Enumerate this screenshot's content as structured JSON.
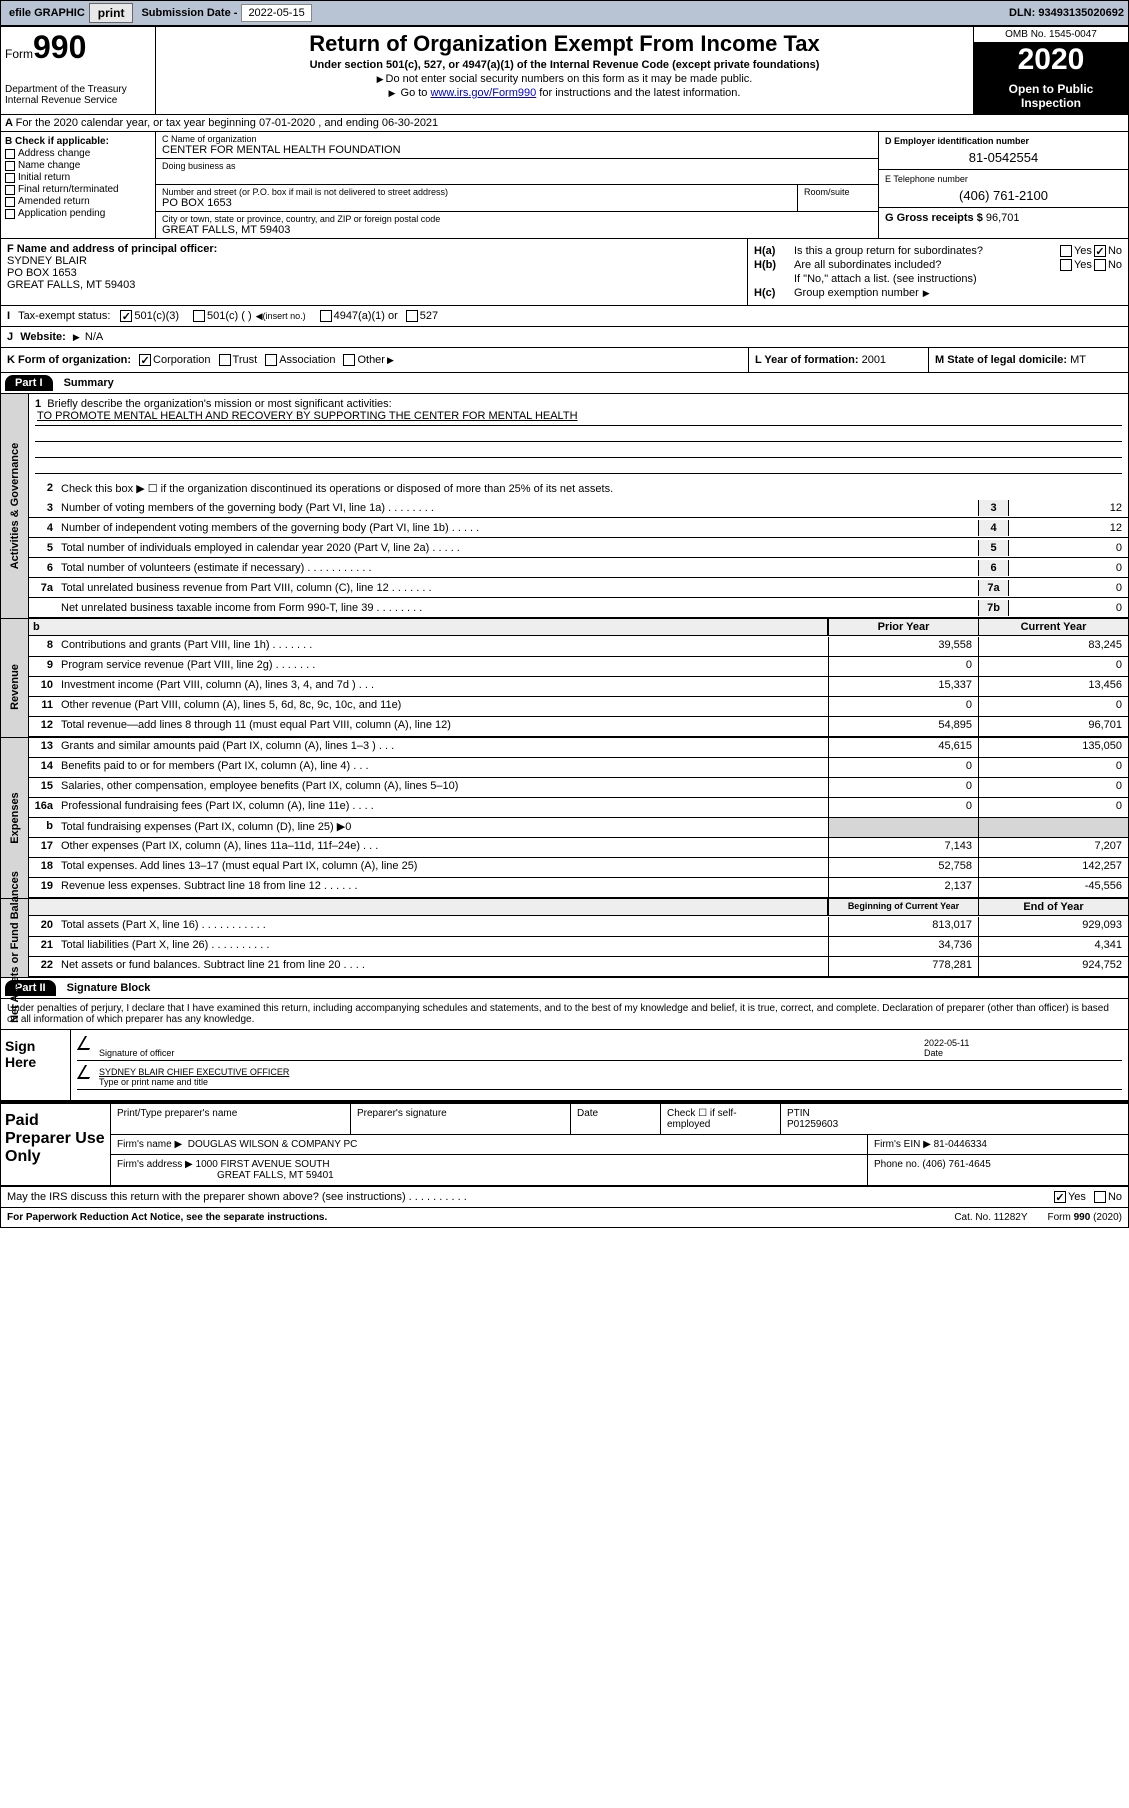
{
  "topbar": {
    "efile_label": "efile GRAPHIC",
    "print_btn": "print",
    "sub_date_label": "Submission Date -",
    "sub_date": "2022-05-15",
    "dln_label": "DLN:",
    "dln": "93493135020692"
  },
  "header": {
    "form_prefix": "Form",
    "form_no": "990",
    "dept": "Department of the Treasury",
    "irs": "Internal Revenue Service",
    "title": "Return of Organization Exempt From Income Tax",
    "subtitle": "Under section 501(c), 527, or 4947(a)(1) of the Internal Revenue Code (except private foundations)",
    "sub2a": "Do not enter social security numbers on this form as it may be made public.",
    "sub2b_pre": "Go to ",
    "sub2b_link": "www.irs.gov/Form990",
    "sub2b_post": " for instructions and the latest information.",
    "omb": "OMB No. 1545-0047",
    "year": "2020",
    "inspect": "Open to Public Inspection"
  },
  "row_a": "For the 2020 calendar year, or tax year beginning 07-01-2020    , and ending 06-30-2021",
  "col_b": {
    "label": "Check if applicable:",
    "items": [
      "Address change",
      "Name change",
      "Initial return",
      "Final return/terminated",
      "Amended return",
      "Application pending"
    ]
  },
  "org": {
    "name_label": "C Name of organization",
    "name": "CENTER FOR MENTAL HEALTH FOUNDATION",
    "dba_label": "Doing business as",
    "addr_label": "Number and street (or P.O. box if mail is not delivered to street address)",
    "room_label": "Room/suite",
    "addr": "PO BOX 1653",
    "city_label": "City or town, state or province, country, and ZIP or foreign postal code",
    "city": "GREAT FALLS, MT  59403"
  },
  "col_d": {
    "ein_label": "D Employer identification number",
    "ein": "81-0542554",
    "phone_label": "E Telephone number",
    "phone": "(406) 761-2100",
    "gross_label": "G Gross receipts $",
    "gross": "96,701"
  },
  "officer": {
    "label": "F  Name and address of principal officer:",
    "name": "SYDNEY BLAIR",
    "addr1": "PO BOX 1653",
    "addr2": "GREAT FALLS, MT  59403"
  },
  "h": {
    "a_label": "H(a)",
    "a_text": "Is this a group return for subordinates?",
    "b_label": "H(b)",
    "b_text": "Are all subordinates included?",
    "attach": "If \"No,\" attach a list. (see instructions)",
    "c_label": "H(c)",
    "c_text": "Group exemption number"
  },
  "row_i": {
    "label": "Tax-exempt status:",
    "o1": "501(c)(3)",
    "o2": "501(c) (  )",
    "o2b": "(insert no.)",
    "o3": "4947(a)(1) or",
    "o4": "527"
  },
  "row_j": {
    "label": "Website:",
    "val": "N/A"
  },
  "row_k": {
    "label": "K Form of organization:",
    "o1": "Corporation",
    "o2": "Trust",
    "o3": "Association",
    "o4": "Other",
    "l_label": "L Year of formation:",
    "l_val": "2001",
    "m_label": "M State of legal domicile:",
    "m_val": "MT"
  },
  "part1": {
    "hdr": "Part I",
    "title": "Summary",
    "side1": "Activities & Governance",
    "side2": "Revenue",
    "side3": "Expenses",
    "side4": "Net Assets or Fund Balances",
    "q1": "Briefly describe the organization's mission or most significant activities:",
    "mission": "TO PROMOTE MENTAL HEALTH AND RECOVERY BY SUPPORTING THE CENTER FOR MENTAL HEALTH",
    "q2": "Check this box ▶ ☐  if the organization discontinued its operations or disposed of more than 25% of its net assets.",
    "lines_gov": [
      {
        "n": "3",
        "t": "Number of voting members of the governing body (Part VI, line 1a)  .    .    .    .    .    .    .    .",
        "bn": "3",
        "v": "12"
      },
      {
        "n": "4",
        "t": "Number of independent voting members of the governing body (Part VI, line 1b)  .    .    .    .    .",
        "bn": "4",
        "v": "12"
      },
      {
        "n": "5",
        "t": "Total number of individuals employed in calendar year 2020 (Part V, line 2a)  .    .    .    .    .",
        "bn": "5",
        "v": "0"
      },
      {
        "n": "6",
        "t": "Total number of volunteers (estimate if necessary)  .    .    .    .    .    .    .    .    .    .    .",
        "bn": "6",
        "v": "0"
      },
      {
        "n": "7a",
        "t": "Total unrelated business revenue from Part VIII, column (C), line 12  .    .    .    .    .    .    .",
        "bn": "7a",
        "v": "0"
      },
      {
        "n": "",
        "t": "Net unrelated business taxable income from Form 990-T, line 39   .    .    .    .    .    .    .    .",
        "bn": "7b",
        "v": "0"
      }
    ],
    "hdr_prior": "Prior Year",
    "hdr_curr": "Current Year",
    "lines_rev": [
      {
        "n": "8",
        "t": "Contributions and grants (Part VIII, line 1h)  .    .    .    .    .    .    .",
        "p": "39,558",
        "c": "83,245"
      },
      {
        "n": "9",
        "t": "Program service revenue (Part VIII, line 2g)  .    .    .    .    .    .    .",
        "p": "0",
        "c": "0"
      },
      {
        "n": "10",
        "t": "Investment income (Part VIII, column (A), lines 3, 4, and 7d )  .    .    .",
        "p": "15,337",
        "c": "13,456"
      },
      {
        "n": "11",
        "t": "Other revenue (Part VIII, column (A), lines 5, 6d, 8c, 9c, 10c, and 11e)",
        "p": "0",
        "c": "0"
      },
      {
        "n": "12",
        "t": "Total revenue—add lines 8 through 11 (must equal Part VIII, column (A), line 12)",
        "p": "54,895",
        "c": "96,701"
      }
    ],
    "lines_exp": [
      {
        "n": "13",
        "t": "Grants and similar amounts paid (Part IX, column (A), lines 1–3 )  .    .    .",
        "p": "45,615",
        "c": "135,050"
      },
      {
        "n": "14",
        "t": "Benefits paid to or for members (Part IX, column (A), line 4)  .    .    .",
        "p": "0",
        "c": "0"
      },
      {
        "n": "15",
        "t": "Salaries, other compensation, employee benefits (Part IX, column (A), lines 5–10)",
        "p": "0",
        "c": "0"
      },
      {
        "n": "16a",
        "t": "Professional fundraising fees (Part IX, column (A), line 11e)  .    .    .    .",
        "p": "0",
        "c": "0"
      },
      {
        "n": "b",
        "t": "Total fundraising expenses (Part IX, column (D), line 25) ▶0",
        "p": "",
        "c": "",
        "grey": true
      },
      {
        "n": "17",
        "t": "Other expenses (Part IX, column (A), lines 11a–11d, 11f–24e)  .    .    .",
        "p": "7,143",
        "c": "7,207"
      },
      {
        "n": "18",
        "t": "Total expenses. Add lines 13–17 (must equal Part IX, column (A), line 25)",
        "p": "52,758",
        "c": "142,257"
      },
      {
        "n": "19",
        "t": "Revenue less expenses. Subtract line 18 from line 12  .    .    .    .    .    .",
        "p": "2,137",
        "c": "-45,556"
      }
    ],
    "hdr_beg": "Beginning of Current Year",
    "hdr_end": "End of Year",
    "lines_net": [
      {
        "n": "20",
        "t": "Total assets (Part X, line 16)  .    .    .    .    .    .    .    .    .    .    .",
        "p": "813,017",
        "c": "929,093"
      },
      {
        "n": "21",
        "t": "Total liabilities (Part X, line 26)  .    .    .    .    .    .    .    .    .    .",
        "p": "34,736",
        "c": "4,341"
      },
      {
        "n": "22",
        "t": "Net assets or fund balances. Subtract line 21 from line 20  .    .    .    .",
        "p": "778,281",
        "c": "924,752"
      }
    ]
  },
  "part2": {
    "hdr": "Part II",
    "title": "Signature Block",
    "intro": "Under penalties of perjury, I declare that I have examined this return, including accompanying schedules and statements, and to the best of my knowledge and belief, it is true, correct, and complete. Declaration of preparer (other than officer) is based on all information of which preparer has any knowledge.",
    "sign_here": "Sign Here",
    "sig_label": "Signature of officer",
    "date_label": "Date",
    "date": "2022-05-11",
    "name_title": "SYDNEY BLAIR  CHIEF EXECUTIVE OFFICER",
    "name_label": "Type or print name and title"
  },
  "prep": {
    "label": "Paid Preparer Use Only",
    "h1": "Print/Type preparer's name",
    "h2": "Preparer's signature",
    "h3": "Date",
    "h4a": "Check ☐ if self-employed",
    "h4b_label": "PTIN",
    "h4b": "P01259603",
    "firm_label": "Firm's name   ▶",
    "firm": "DOUGLAS WILSON & COMPANY PC",
    "ein_label": "Firm's EIN ▶",
    "ein": "81-0446334",
    "addr_label": "Firm's address ▶",
    "addr1": "1000 FIRST AVENUE SOUTH",
    "addr2": "GREAT FALLS, MT  59401",
    "phone_label": "Phone no.",
    "phone": "(406) 761-4645"
  },
  "discuss": "May the IRS discuss this return with the preparer shown above? (see instructions)   .    .    .    .    .    .    .    .    .    .",
  "footer": {
    "l": "For Paperwork Reduction Act Notice, see the separate instructions.",
    "c": "Cat. No. 11282Y",
    "r": "Form 990 (2020)"
  },
  "colors": {
    "topbar_bg": "#b8c4d4",
    "black": "#000000",
    "grey_side": "#d6d6d6",
    "grey_box": "#eeeeee",
    "link": "#0000cc"
  }
}
